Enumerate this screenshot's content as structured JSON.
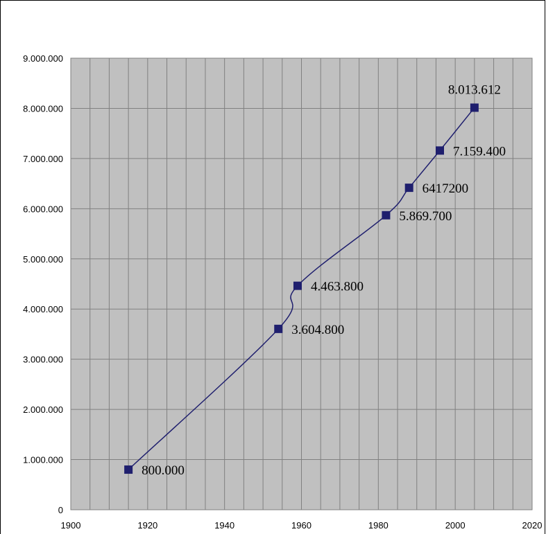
{
  "chart_data": {
    "type": "line",
    "title": "",
    "xlabel": "",
    "ylabel": "",
    "xlim": [
      1900,
      2020
    ],
    "ylim": [
      0,
      9000000
    ],
    "x_ticks": [
      1900,
      1920,
      1940,
      1960,
      1980,
      2000,
      2020
    ],
    "x_tick_labels": [
      "1900",
      "1920",
      "1940",
      "1960",
      "1980",
      "2000",
      "2020"
    ],
    "y_ticks": [
      0,
      1000000,
      2000000,
      3000000,
      4000000,
      5000000,
      6000000,
      7000000,
      8000000,
      9000000
    ],
    "y_tick_labels": [
      "0",
      "1.000.000",
      "2.000.000",
      "3.000.000",
      "4.000.000",
      "5.000.000",
      "6.000.000",
      "7.000.000",
      "8.000.000",
      "9.000.000"
    ],
    "grid": true,
    "legend": "none",
    "colors": {
      "plot_background": "#c0c0c0",
      "gridline": "#808080",
      "series_line": "#1f1f6e",
      "marker": "#1f1f6e"
    },
    "series": [
      {
        "x": [
          1915,
          1954,
          1959,
          1982,
          1988,
          1996,
          2005
        ],
        "values": [
          800000,
          3604800,
          4463800,
          5869700,
          6417200,
          7159400,
          8013612
        ],
        "labels": [
          "800.000",
          "3.604.800",
          "4.463.800",
          "5.869.700",
          "6417200",
          "7.159.400",
          "8.013.612"
        ]
      }
    ]
  }
}
